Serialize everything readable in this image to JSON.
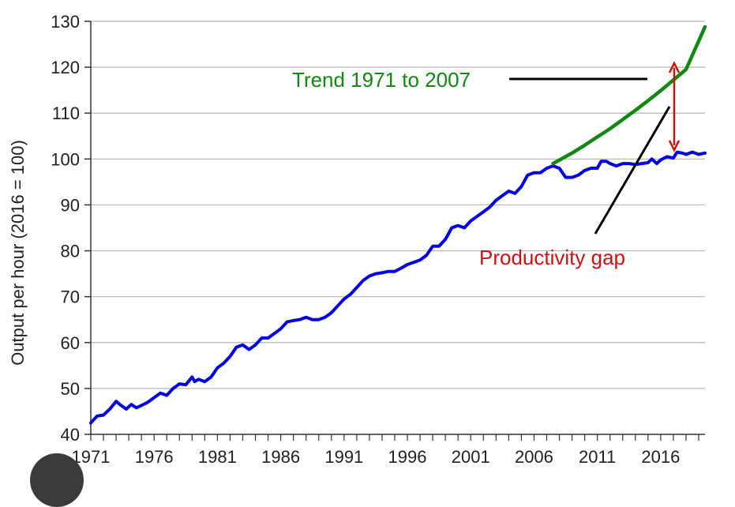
{
  "chart_data": {
    "type": "line",
    "title": "",
    "xlabel": "",
    "ylabel": "Output per hour (2016 = 100)",
    "xlim": [
      1971,
      2019.5
    ],
    "ylim": [
      40,
      130
    ],
    "x_ticks": [
      "1971",
      "1976",
      "1981",
      "1986",
      "1991",
      "1996",
      "2001",
      "2006",
      "2011",
      "2016"
    ],
    "y_ticks": [
      40,
      50,
      60,
      70,
      80,
      90,
      100,
      110,
      120,
      130
    ],
    "grid": "horizontal",
    "series": [
      {
        "name": "Output per hour",
        "color": "#0000e6",
        "x": [
          1971.0,
          1971.5,
          1972.0,
          1972.5,
          1973.0,
          1973.3,
          1973.8,
          1974.2,
          1974.6,
          1975.0,
          1975.5,
          1976.0,
          1976.5,
          1977.0,
          1977.5,
          1978.0,
          1978.5,
          1979.0,
          1979.2,
          1979.5,
          1980.0,
          1980.5,
          1981.0,
          1981.5,
          1982.0,
          1982.5,
          1983.0,
          1983.5,
          1984.0,
          1984.5,
          1985.0,
          1985.5,
          1986.0,
          1986.5,
          1987.0,
          1987.5,
          1988.0,
          1988.5,
          1989.0,
          1989.5,
          1990.0,
          1990.5,
          1991.0,
          1991.5,
          1992.0,
          1992.5,
          1993.0,
          1993.5,
          1994.0,
          1994.5,
          1995.0,
          1995.5,
          1996.0,
          1996.5,
          1997.0,
          1997.5,
          1998.0,
          1998.5,
          1999.0,
          1999.5,
          2000.0,
          2000.5,
          2001.0,
          2001.5,
          2002.0,
          2002.5,
          2003.0,
          2003.5,
          2004.0,
          2004.5,
          2005.0,
          2005.5,
          2006.0,
          2006.5,
          2007.0,
          2007.5,
          2008.0,
          2008.5,
          2009.0,
          2009.5,
          2010.0,
          2010.5,
          2011.0,
          2011.3,
          2011.7,
          2012.0,
          2012.5,
          2013.0,
          2013.5,
          2014.0,
          2014.5,
          2015.0,
          2015.3,
          2015.7,
          2016.0,
          2016.5,
          2017.0,
          2017.3,
          2017.7,
          2018.0,
          2018.5,
          2019.0,
          2019.5
        ],
        "values": [
          42.5,
          44.0,
          44.2,
          45.5,
          47.2,
          46.5,
          45.5,
          46.5,
          45.8,
          46.3,
          47.0,
          48.0,
          49.0,
          48.5,
          50.0,
          51.0,
          50.8,
          52.5,
          51.5,
          52.0,
          51.5,
          52.5,
          54.5,
          55.5,
          57.0,
          59.0,
          59.5,
          58.5,
          59.5,
          61.0,
          61.0,
          62.0,
          63.0,
          64.5,
          64.8,
          65.0,
          65.5,
          65.0,
          65.0,
          65.5,
          66.5,
          68.0,
          69.5,
          70.5,
          72.0,
          73.5,
          74.5,
          75.0,
          75.2,
          75.5,
          75.5,
          76.2,
          77.0,
          77.5,
          78.0,
          79.0,
          81.0,
          81.0,
          82.5,
          85.0,
          85.5,
          85.0,
          86.5,
          87.5,
          88.5,
          89.5,
          91.0,
          92.0,
          93.0,
          92.5,
          94.0,
          96.5,
          97.0,
          97.0,
          98.0,
          98.5,
          98.0,
          96.0,
          96.0,
          96.5,
          97.5,
          98.0,
          98.0,
          99.5,
          99.5,
          99.0,
          98.5,
          99.0,
          99.0,
          98.8,
          99.0,
          99.2,
          100.0,
          99.0,
          99.8,
          100.5,
          100.2,
          101.5,
          101.3,
          101.0,
          101.5,
          101.0,
          101.3
        ]
      },
      {
        "name": "Trend 1971 to 2007",
        "color": "#118811",
        "x": [
          2007.5,
          2009,
          2010,
          2011,
          2012,
          2013,
          2014,
          2015,
          2016,
          2017,
          2018,
          2019.5
        ],
        "values": [
          99.0,
          101.3,
          103.0,
          104.8,
          106.6,
          108.6,
          110.6,
          112.7,
          114.9,
          117.2,
          119.5,
          128.8
        ]
      }
    ],
    "annotations": [
      {
        "text": "Trend 1971 to 2007",
        "color": "#118811"
      },
      {
        "text": "Productivity gap",
        "color": "#cc1111"
      }
    ]
  }
}
